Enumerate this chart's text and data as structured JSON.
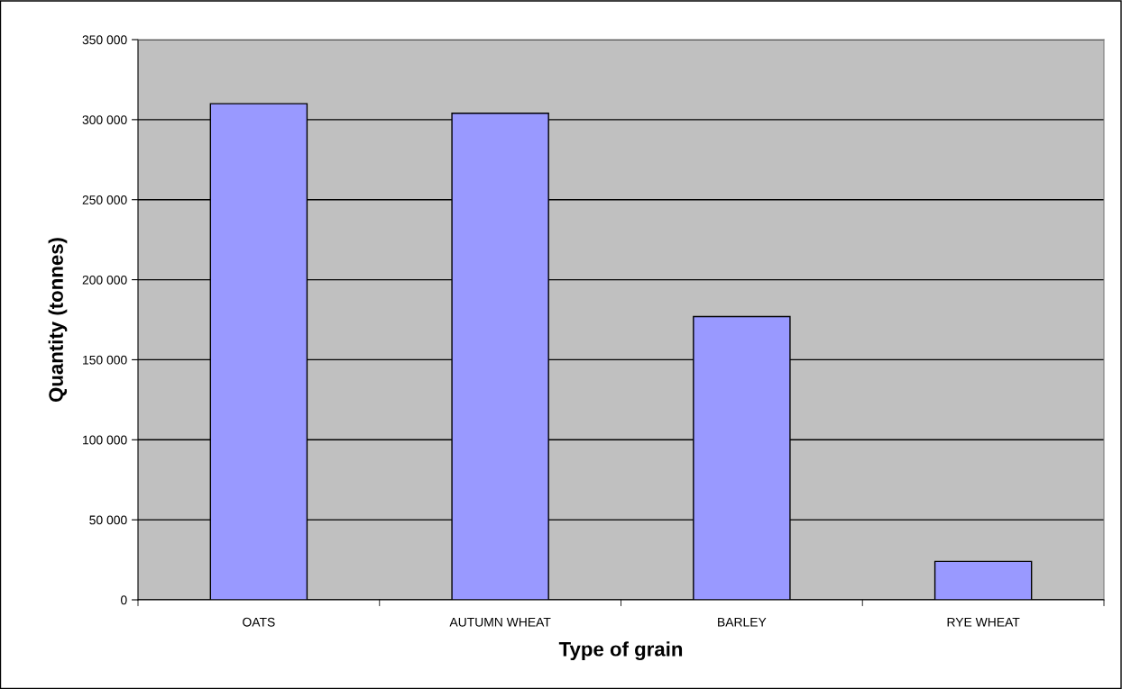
{
  "chart_data": {
    "type": "bar",
    "xlabel": "Type of grain",
    "ylabel": "Quantity (tonnes)",
    "categories": [
      "OATS",
      "AUTUMN WHEAT",
      "BARLEY",
      "RYE WHEAT"
    ],
    "values": [
      310000,
      304000,
      177000,
      24000
    ],
    "color": "#9999ff",
    "ylim": [
      0,
      350000
    ],
    "yticks": [
      {
        "value": 0,
        "label": "0"
      },
      {
        "value": 50000,
        "label": "50 000"
      },
      {
        "value": 100000,
        "label": "100 000"
      },
      {
        "value": 150000,
        "label": "150 000"
      },
      {
        "value": 200000,
        "label": "200 000"
      },
      {
        "value": 250000,
        "label": "250 000"
      },
      {
        "value": 300000,
        "label": "300 000"
      },
      {
        "value": 350000,
        "label": "350 000"
      }
    ],
    "grid": "y"
  }
}
